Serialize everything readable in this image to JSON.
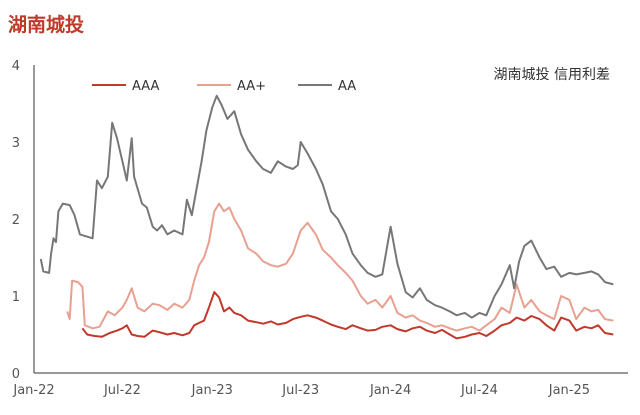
{
  "page": {
    "title": "湖南城投"
  },
  "chart_data": {
    "type": "line",
    "annotation": "湖南城投 信用利差",
    "ylim": [
      0,
      4
    ],
    "yticks": [
      "0",
      "1",
      "2",
      "3",
      "4"
    ],
    "xlim": [
      "2022-01",
      "2025-05"
    ],
    "xticks": [
      {
        "label": "Jan-22",
        "x": "2022-01"
      },
      {
        "label": "Jul-22",
        "x": "2022-07"
      },
      {
        "label": "Jan-23",
        "x": "2023-01"
      },
      {
        "label": "Jul-23",
        "x": "2023-07"
      },
      {
        "label": "Jan-24",
        "x": "2024-01"
      },
      {
        "label": "Jul-24",
        "x": "2024-07"
      },
      {
        "label": "Jan-25",
        "x": "2025-01"
      }
    ],
    "grid": false,
    "legend": "top-left",
    "series": [
      {
        "name": "AAA",
        "color": "#c0392b",
        "points": [
          [
            "2022-04-10",
            0.58
          ],
          [
            "2022-04-20",
            0.5
          ],
          [
            "2022-05-05",
            0.48
          ],
          [
            "2022-05-20",
            0.47
          ],
          [
            "2022-06-05",
            0.52
          ],
          [
            "2022-06-20",
            0.55
          ],
          [
            "2022-07-01",
            0.58
          ],
          [
            "2022-07-10",
            0.62
          ],
          [
            "2022-07-20",
            0.5
          ],
          [
            "2022-08-01",
            0.48
          ],
          [
            "2022-08-15",
            0.47
          ],
          [
            "2022-09-01",
            0.55
          ],
          [
            "2022-09-15",
            0.53
          ],
          [
            "2022-10-01",
            0.5
          ],
          [
            "2022-10-15",
            0.52
          ],
          [
            "2022-11-01",
            0.49
          ],
          [
            "2022-11-15",
            0.52
          ],
          [
            "2022-11-25",
            0.62
          ],
          [
            "2022-12-05",
            0.65
          ],
          [
            "2022-12-15",
            0.68
          ],
          [
            "2022-12-25",
            0.85
          ],
          [
            "2023-01-05",
            1.05
          ],
          [
            "2023-01-15",
            0.98
          ],
          [
            "2023-01-25",
            0.8
          ],
          [
            "2023-02-05",
            0.85
          ],
          [
            "2023-02-15",
            0.78
          ],
          [
            "2023-03-01",
            0.75
          ],
          [
            "2023-03-15",
            0.68
          ],
          [
            "2023-04-01",
            0.66
          ],
          [
            "2023-04-15",
            0.64
          ],
          [
            "2023-05-01",
            0.67
          ],
          [
            "2023-05-15",
            0.63
          ],
          [
            "2023-06-01",
            0.65
          ],
          [
            "2023-06-15",
            0.7
          ],
          [
            "2023-07-01",
            0.73
          ],
          [
            "2023-07-15",
            0.75
          ],
          [
            "2023-08-01",
            0.72
          ],
          [
            "2023-08-15",
            0.68
          ],
          [
            "2023-09-01",
            0.63
          ],
          [
            "2023-09-15",
            0.6
          ],
          [
            "2023-10-01",
            0.57
          ],
          [
            "2023-10-15",
            0.62
          ],
          [
            "2023-11-01",
            0.58
          ],
          [
            "2023-11-15",
            0.55
          ],
          [
            "2023-12-01",
            0.56
          ],
          [
            "2023-12-15",
            0.6
          ],
          [
            "2024-01-01",
            0.62
          ],
          [
            "2024-01-15",
            0.57
          ],
          [
            "2024-02-01",
            0.54
          ],
          [
            "2024-02-15",
            0.58
          ],
          [
            "2024-03-01",
            0.6
          ],
          [
            "2024-03-15",
            0.55
          ],
          [
            "2024-04-01",
            0.52
          ],
          [
            "2024-04-15",
            0.56
          ],
          [
            "2024-05-01",
            0.5
          ],
          [
            "2024-05-15",
            0.45
          ],
          [
            "2024-06-01",
            0.47
          ],
          [
            "2024-06-15",
            0.5
          ],
          [
            "2024-07-01",
            0.52
          ],
          [
            "2024-07-15",
            0.48
          ],
          [
            "2024-08-01",
            0.55
          ],
          [
            "2024-08-15",
            0.62
          ],
          [
            "2024-09-01",
            0.65
          ],
          [
            "2024-09-15",
            0.72
          ],
          [
            "2024-10-01",
            0.68
          ],
          [
            "2024-10-15",
            0.74
          ],
          [
            "2024-11-01",
            0.7
          ],
          [
            "2024-11-15",
            0.62
          ],
          [
            "2024-12-01",
            0.55
          ],
          [
            "2024-12-15",
            0.72
          ],
          [
            "2025-01-01",
            0.68
          ],
          [
            "2025-01-15",
            0.55
          ],
          [
            "2025-02-01",
            0.6
          ],
          [
            "2025-02-15",
            0.58
          ],
          [
            "2025-03-01",
            0.62
          ],
          [
            "2025-03-15",
            0.52
          ],
          [
            "2025-04-01",
            0.5
          ]
        ]
      },
      {
        "name": "AA+",
        "color": "#e8a090",
        "points": [
          [
            "2022-03-10",
            0.8
          ],
          [
            "2022-03-15",
            0.7
          ],
          [
            "2022-03-20",
            1.2
          ],
          [
            "2022-04-01",
            1.18
          ],
          [
            "2022-04-10",
            1.12
          ],
          [
            "2022-04-15",
            0.62
          ],
          [
            "2022-05-01",
            0.58
          ],
          [
            "2022-05-15",
            0.6
          ],
          [
            "2022-06-01",
            0.8
          ],
          [
            "2022-06-15",
            0.75
          ],
          [
            "2022-07-01",
            0.85
          ],
          [
            "2022-07-10",
            0.95
          ],
          [
            "2022-07-20",
            1.1
          ],
          [
            "2022-08-01",
            0.85
          ],
          [
            "2022-08-15",
            0.8
          ],
          [
            "2022-09-01",
            0.9
          ],
          [
            "2022-09-15",
            0.88
          ],
          [
            "2022-10-01",
            0.82
          ],
          [
            "2022-10-15",
            0.9
          ],
          [
            "2022-11-01",
            0.85
          ],
          [
            "2022-11-15",
            0.95
          ],
          [
            "2022-11-25",
            1.2
          ],
          [
            "2022-12-05",
            1.4
          ],
          [
            "2022-12-15",
            1.5
          ],
          [
            "2022-12-25",
            1.7
          ],
          [
            "2023-01-05",
            2.1
          ],
          [
            "2023-01-15",
            2.2
          ],
          [
            "2023-01-25",
            2.1
          ],
          [
            "2023-02-05",
            2.15
          ],
          [
            "2023-02-15",
            2.0
          ],
          [
            "2023-03-01",
            1.85
          ],
          [
            "2023-03-15",
            1.62
          ],
          [
            "2023-04-01",
            1.55
          ],
          [
            "2023-04-15",
            1.45
          ],
          [
            "2023-05-01",
            1.4
          ],
          [
            "2023-05-15",
            1.38
          ],
          [
            "2023-06-01",
            1.42
          ],
          [
            "2023-06-15",
            1.55
          ],
          [
            "2023-07-01",
            1.85
          ],
          [
            "2023-07-15",
            1.95
          ],
          [
            "2023-08-01",
            1.8
          ],
          [
            "2023-08-15",
            1.6
          ],
          [
            "2023-09-01",
            1.5
          ],
          [
            "2023-09-15",
            1.4
          ],
          [
            "2023-10-01",
            1.3
          ],
          [
            "2023-10-15",
            1.2
          ],
          [
            "2023-11-01",
            1.0
          ],
          [
            "2023-11-15",
            0.9
          ],
          [
            "2023-12-01",
            0.95
          ],
          [
            "2023-12-15",
            0.85
          ],
          [
            "2024-01-01",
            1.0
          ],
          [
            "2024-01-15",
            0.78
          ],
          [
            "2024-02-01",
            0.72
          ],
          [
            "2024-02-15",
            0.75
          ],
          [
            "2024-03-01",
            0.68
          ],
          [
            "2024-03-15",
            0.65
          ],
          [
            "2024-04-01",
            0.6
          ],
          [
            "2024-04-15",
            0.62
          ],
          [
            "2024-05-01",
            0.58
          ],
          [
            "2024-05-15",
            0.55
          ],
          [
            "2024-06-01",
            0.58
          ],
          [
            "2024-06-15",
            0.6
          ],
          [
            "2024-07-01",
            0.55
          ],
          [
            "2024-07-15",
            0.62
          ],
          [
            "2024-08-01",
            0.7
          ],
          [
            "2024-08-15",
            0.85
          ],
          [
            "2024-09-01",
            0.78
          ],
          [
            "2024-09-15",
            1.15
          ],
          [
            "2024-10-01",
            0.85
          ],
          [
            "2024-10-15",
            0.95
          ],
          [
            "2024-11-01",
            0.8
          ],
          [
            "2024-11-15",
            0.75
          ],
          [
            "2024-12-01",
            0.7
          ],
          [
            "2024-12-15",
            1.0
          ],
          [
            "2025-01-01",
            0.95
          ],
          [
            "2025-01-15",
            0.7
          ],
          [
            "2025-02-01",
            0.85
          ],
          [
            "2025-02-15",
            0.8
          ],
          [
            "2025-03-01",
            0.82
          ],
          [
            "2025-03-15",
            0.7
          ],
          [
            "2025-04-01",
            0.68
          ]
        ]
      },
      {
        "name": "AA",
        "color": "#777777",
        "points": [
          [
            "2022-01-15",
            1.48
          ],
          [
            "2022-01-20",
            1.32
          ],
          [
            "2022-02-01",
            1.3
          ],
          [
            "2022-02-05",
            1.55
          ],
          [
            "2022-02-10",
            1.75
          ],
          [
            "2022-02-15",
            1.7
          ],
          [
            "2022-02-20",
            2.1
          ],
          [
            "2022-03-01",
            2.2
          ],
          [
            "2022-03-15",
            2.18
          ],
          [
            "2022-03-25",
            2.05
          ],
          [
            "2022-04-05",
            1.8
          ],
          [
            "2022-04-15",
            1.78
          ],
          [
            "2022-05-01",
            1.75
          ],
          [
            "2022-05-10",
            2.5
          ],
          [
            "2022-05-20",
            2.4
          ],
          [
            "2022-06-01",
            2.55
          ],
          [
            "2022-06-10",
            3.25
          ],
          [
            "2022-06-20",
            3.05
          ],
          [
            "2022-07-01",
            2.75
          ],
          [
            "2022-07-10",
            2.5
          ],
          [
            "2022-07-20",
            3.05
          ],
          [
            "2022-07-25",
            2.55
          ],
          [
            "2022-08-10",
            2.2
          ],
          [
            "2022-08-20",
            2.15
          ],
          [
            "2022-09-01",
            1.9
          ],
          [
            "2022-09-10",
            1.85
          ],
          [
            "2022-09-20",
            1.92
          ],
          [
            "2022-10-01",
            1.8
          ],
          [
            "2022-10-15",
            1.85
          ],
          [
            "2022-11-01",
            1.8
          ],
          [
            "2022-11-10",
            2.25
          ],
          [
            "2022-11-20",
            2.05
          ],
          [
            "2022-11-30",
            2.4
          ],
          [
            "2022-12-10",
            2.75
          ],
          [
            "2022-12-20",
            3.15
          ],
          [
            "2023-01-01",
            3.45
          ],
          [
            "2023-01-10",
            3.6
          ],
          [
            "2023-01-20",
            3.48
          ],
          [
            "2023-02-01",
            3.3
          ],
          [
            "2023-02-15",
            3.4
          ],
          [
            "2023-03-01",
            3.1
          ],
          [
            "2023-03-15",
            2.9
          ],
          [
            "2023-04-01",
            2.75
          ],
          [
            "2023-04-15",
            2.65
          ],
          [
            "2023-05-01",
            2.6
          ],
          [
            "2023-05-15",
            2.75
          ],
          [
            "2023-06-01",
            2.68
          ],
          [
            "2023-06-15",
            2.65
          ],
          [
            "2023-06-25",
            2.7
          ],
          [
            "2023-07-01",
            3.0
          ],
          [
            "2023-07-15",
            2.85
          ],
          [
            "2023-08-01",
            2.65
          ],
          [
            "2023-08-15",
            2.45
          ],
          [
            "2023-09-01",
            2.1
          ],
          [
            "2023-09-15",
            2.0
          ],
          [
            "2023-10-01",
            1.8
          ],
          [
            "2023-10-15",
            1.55
          ],
          [
            "2023-11-01",
            1.4
          ],
          [
            "2023-11-15",
            1.3
          ],
          [
            "2023-12-01",
            1.25
          ],
          [
            "2023-12-15",
            1.28
          ],
          [
            "2024-01-01",
            1.9
          ],
          [
            "2024-01-15",
            1.42
          ],
          [
            "2024-02-01",
            1.05
          ],
          [
            "2024-02-15",
            0.98
          ],
          [
            "2024-03-01",
            1.1
          ],
          [
            "2024-03-15",
            0.95
          ],
          [
            "2024-04-01",
            0.88
          ],
          [
            "2024-04-15",
            0.85
          ],
          [
            "2024-05-01",
            0.8
          ],
          [
            "2024-05-15",
            0.75
          ],
          [
            "2024-06-01",
            0.78
          ],
          [
            "2024-06-15",
            0.72
          ],
          [
            "2024-07-01",
            0.78
          ],
          [
            "2024-07-15",
            0.75
          ],
          [
            "2024-08-01",
            1.0
          ],
          [
            "2024-08-15",
            1.15
          ],
          [
            "2024-09-01",
            1.4
          ],
          [
            "2024-09-10",
            1.1
          ],
          [
            "2024-09-20",
            1.45
          ],
          [
            "2024-10-01",
            1.65
          ],
          [
            "2024-10-15",
            1.72
          ],
          [
            "2024-11-01",
            1.5
          ],
          [
            "2024-11-15",
            1.35
          ],
          [
            "2024-12-01",
            1.38
          ],
          [
            "2024-12-15",
            1.25
          ],
          [
            "2025-01-01",
            1.3
          ],
          [
            "2025-01-15",
            1.28
          ],
          [
            "2025-02-01",
            1.3
          ],
          [
            "2025-02-15",
            1.32
          ],
          [
            "2025-03-01",
            1.28
          ],
          [
            "2025-03-15",
            1.18
          ],
          [
            "2025-04-01",
            1.15
          ]
        ]
      }
    ]
  }
}
